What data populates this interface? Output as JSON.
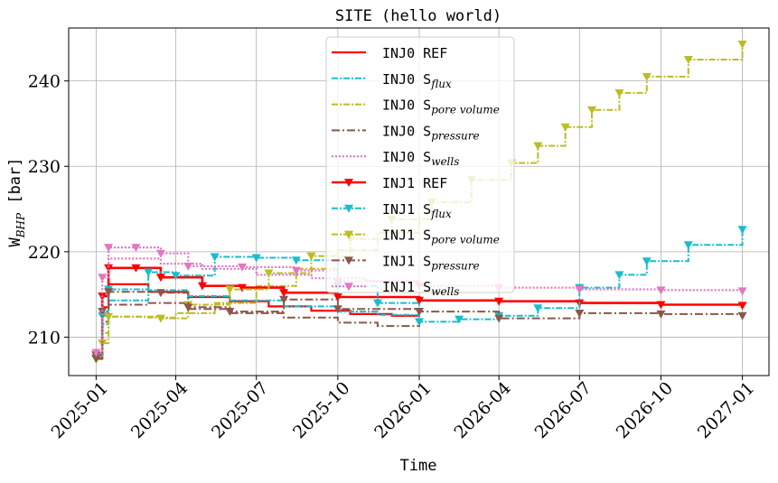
{
  "chart_data": {
    "type": "line",
    "title": "SITE (hello world)",
    "xlabel": "Time",
    "ylabel": {
      "base": "W",
      "sub": "BHP",
      "suffix": " [bar]"
    },
    "xlim": [
      "2024-12-01",
      "2027-01-31"
    ],
    "ylim": [
      205.5,
      246.2
    ],
    "yticks": [
      210,
      220,
      230,
      240
    ],
    "xticks": [
      "2025-01",
      "2025-04",
      "2025-07",
      "2025-10",
      "2026-01",
      "2026-04",
      "2026-07",
      "2026-10",
      "2027-01"
    ],
    "xtick_dates": [
      "2025-01-01",
      "2025-04-01",
      "2025-07-01",
      "2025-10-01",
      "2026-01-01",
      "2026-04-01",
      "2026-07-01",
      "2026-10-01",
      "2027-01-01"
    ],
    "grid": true,
    "legend_position": "upper-center",
    "series": [
      {
        "name": "INJ0 REF",
        "label_base": "INJ0 ",
        "label_sub": "",
        "label_plain": "REF",
        "color": "#ff0000",
        "dash": "",
        "width": 2.2,
        "marker": false,
        "points": [
          [
            "2025-01-01",
            207.9
          ],
          [
            "2025-01-08",
            213.5
          ],
          [
            "2025-01-15",
            216.2
          ],
          [
            "2025-02-01",
            216.2
          ],
          [
            "2025-03-01",
            215.3
          ],
          [
            "2025-04-15",
            214.7
          ],
          [
            "2025-06-01",
            214.2
          ],
          [
            "2025-07-15",
            213.6
          ],
          [
            "2025-09-01",
            213.1
          ],
          [
            "2025-10-15",
            212.7
          ],
          [
            "2025-12-01",
            212.5
          ],
          [
            "2026-01-01",
            212.5
          ]
        ]
      },
      {
        "name": "INJ0 Sflux",
        "label_base": "INJ0 S",
        "label_sub": "flux",
        "label_plain": "",
        "color": "#17becf",
        "dash": "7,2,2,2",
        "width": 2,
        "marker": false,
        "points": [
          [
            "2025-01-01",
            207.6
          ],
          [
            "2025-01-08",
            211.5
          ],
          [
            "2025-01-15",
            214.3
          ],
          [
            "2025-02-15",
            214.3
          ],
          [
            "2025-03-01",
            215.5
          ],
          [
            "2025-04-15",
            214.8
          ],
          [
            "2025-06-01",
            214.3
          ],
          [
            "2025-08-01",
            213.6
          ],
          [
            "2025-10-01",
            213.0
          ],
          [
            "2025-11-15",
            212.6
          ],
          [
            "2026-01-01",
            212.4
          ]
        ]
      },
      {
        "name": "INJ0 Spore volume",
        "label_base": "INJ0 S",
        "label_sub": "pore volume",
        "label_plain": "",
        "color": "#bcbd22",
        "dash": "7,2,2,2",
        "width": 2,
        "marker": false,
        "points": [
          [
            "2025-01-01",
            207.4
          ],
          [
            "2025-01-08",
            210.5
          ],
          [
            "2025-01-15",
            212.4
          ],
          [
            "2025-03-01",
            212.3
          ],
          [
            "2025-04-01",
            212.8
          ],
          [
            "2025-05-15",
            214.0
          ],
          [
            "2025-07-01",
            216.0
          ],
          [
            "2025-08-15",
            218.0
          ],
          [
            "2025-10-01",
            220.2
          ],
          [
            "2025-11-15",
            222.2
          ],
          [
            "2026-01-01",
            224.5
          ]
        ]
      },
      {
        "name": "INJ0 Spressure",
        "label_base": "INJ0 S",
        "label_sub": "pressure",
        "label_plain": "",
        "color": "#8c564b",
        "dash": "9,3,2,3",
        "width": 2,
        "marker": false,
        "points": [
          [
            "2025-01-01",
            207.5
          ],
          [
            "2025-01-08",
            211.8
          ],
          [
            "2025-01-15",
            213.8
          ],
          [
            "2025-03-01",
            214.0
          ],
          [
            "2025-04-15",
            213.3
          ],
          [
            "2025-06-01",
            212.8
          ],
          [
            "2025-08-01",
            212.3
          ],
          [
            "2025-10-01",
            211.7
          ],
          [
            "2025-11-15",
            211.3
          ],
          [
            "2026-01-01",
            211.4
          ]
        ]
      },
      {
        "name": "INJ0 Swells",
        "label_base": "INJ0 S",
        "label_sub": "wells",
        "label_plain": "",
        "color": "#e377c2",
        "dash": "2,2",
        "width": 2.2,
        "marker": false,
        "points": [
          [
            "2025-01-01",
            208.2
          ],
          [
            "2025-01-08",
            215.0
          ],
          [
            "2025-01-15",
            219.2
          ],
          [
            "2025-02-15",
            219.2
          ],
          [
            "2025-03-15",
            218.6
          ],
          [
            "2025-05-01",
            218.0
          ],
          [
            "2025-07-01",
            217.3
          ],
          [
            "2025-09-01",
            216.9
          ],
          [
            "2025-11-01",
            216.6
          ],
          [
            "2026-01-01",
            216.3
          ]
        ]
      },
      {
        "name": "INJ1 REF",
        "label_base": "INJ1 ",
        "label_sub": "",
        "label_plain": "REF",
        "color": "#ff0000",
        "dash": "",
        "width": 2.6,
        "marker": true,
        "points": [
          [
            "2025-01-01",
            207.9
          ],
          [
            "2025-01-08",
            214.8
          ],
          [
            "2025-01-15",
            218.1
          ],
          [
            "2025-02-15",
            218.1
          ],
          [
            "2025-03-15",
            217.0
          ],
          [
            "2025-05-01",
            216.0
          ],
          [
            "2025-06-15",
            215.8
          ],
          [
            "2025-08-01",
            215.2
          ],
          [
            "2025-10-01",
            214.7
          ],
          [
            "2026-01-01",
            214.3
          ],
          [
            "2026-04-01",
            214.2
          ],
          [
            "2026-07-01",
            214.0
          ],
          [
            "2026-10-01",
            213.8
          ],
          [
            "2027-01-01",
            213.7
          ]
        ]
      },
      {
        "name": "INJ1 Sflux",
        "label_base": "INJ1 S",
        "label_sub": "flux",
        "label_plain": "",
        "color": "#17becf",
        "dash": "7,2,2,2",
        "width": 2,
        "marker": true,
        "points": [
          [
            "2025-01-01",
            207.6
          ],
          [
            "2025-01-08",
            212.5
          ],
          [
            "2025-01-15",
            215.6
          ],
          [
            "2025-03-01",
            217.6
          ],
          [
            "2025-04-01",
            217.2
          ],
          [
            "2025-05-15",
            219.4
          ],
          [
            "2025-07-01",
            219.3
          ],
          [
            "2025-08-15",
            219.0
          ],
          [
            "2025-10-01",
            216.0
          ],
          [
            "2025-11-15",
            214.0
          ],
          [
            "2026-01-01",
            211.8
          ],
          [
            "2026-02-15",
            212.1
          ],
          [
            "2026-04-01",
            212.5
          ],
          [
            "2026-05-15",
            213.4
          ],
          [
            "2026-07-01",
            215.8
          ],
          [
            "2026-08-15",
            217.3
          ],
          [
            "2026-09-15",
            218.9
          ],
          [
            "2026-11-01",
            220.8
          ],
          [
            "2027-01-01",
            222.6
          ]
        ]
      },
      {
        "name": "INJ1 Spore volume",
        "label_base": "INJ1 S",
        "label_sub": "pore volume",
        "label_plain": "",
        "color": "#bcbd22",
        "dash": "7,2,2,2",
        "width": 2,
        "marker": true,
        "points": [
          [
            "2025-01-01",
            207.4
          ],
          [
            "2025-01-08",
            209.3
          ],
          [
            "2025-01-15",
            212.4
          ],
          [
            "2025-03-15",
            212.2
          ],
          [
            "2025-04-15",
            213.8
          ],
          [
            "2025-06-01",
            215.6
          ],
          [
            "2025-07-15",
            217.5
          ],
          [
            "2025-09-01",
            219.5
          ],
          [
            "2025-10-15",
            221.5
          ],
          [
            "2025-12-01",
            223.8
          ],
          [
            "2026-01-15",
            225.8
          ],
          [
            "2026-03-01",
            228.4
          ],
          [
            "2026-04-15",
            230.4
          ],
          [
            "2026-05-15",
            232.4
          ],
          [
            "2026-06-15",
            234.6
          ],
          [
            "2026-07-15",
            236.6
          ],
          [
            "2026-08-15",
            238.6
          ],
          [
            "2026-09-15",
            240.5
          ],
          [
            "2026-11-01",
            242.5
          ],
          [
            "2027-01-01",
            244.3
          ]
        ]
      },
      {
        "name": "INJ1 Spressure",
        "label_base": "INJ1 S",
        "label_sub": "pressure",
        "label_plain": "",
        "color": "#8c564b",
        "dash": "9,3,2,3",
        "width": 2,
        "marker": true,
        "points": [
          [
            "2025-01-01",
            207.5
          ],
          [
            "2025-01-08",
            213.0
          ],
          [
            "2025-01-15",
            215.3
          ],
          [
            "2025-03-15",
            215.2
          ],
          [
            "2025-04-15",
            213.5
          ],
          [
            "2025-06-01",
            213.0
          ],
          [
            "2025-08-01",
            214.4
          ],
          [
            "2025-10-01",
            213.3
          ],
          [
            "2026-01-01",
            213.0
          ],
          [
            "2026-04-01",
            212.2
          ],
          [
            "2026-07-01",
            212.8
          ],
          [
            "2026-10-01",
            212.7
          ],
          [
            "2027-01-01",
            212.5
          ]
        ]
      },
      {
        "name": "INJ1 Swells",
        "label_base": "INJ1 S",
        "label_sub": "wells",
        "label_plain": "",
        "color": "#e377c2",
        "dash": "2,2",
        "width": 2.2,
        "marker": true,
        "points": [
          [
            "2025-01-01",
            208.2
          ],
          [
            "2025-01-08",
            217.0
          ],
          [
            "2025-01-15",
            220.5
          ],
          [
            "2025-02-15",
            220.5
          ],
          [
            "2025-03-15",
            219.8
          ],
          [
            "2025-04-15",
            218.3
          ],
          [
            "2025-06-15",
            218.2
          ],
          [
            "2025-08-15",
            217.8
          ],
          [
            "2025-10-01",
            216.5
          ],
          [
            "2026-01-01",
            216.0
          ],
          [
            "2026-04-01",
            215.8
          ],
          [
            "2026-07-01",
            215.6
          ],
          [
            "2026-10-01",
            215.5
          ],
          [
            "2027-01-01",
            215.4
          ]
        ]
      }
    ]
  }
}
